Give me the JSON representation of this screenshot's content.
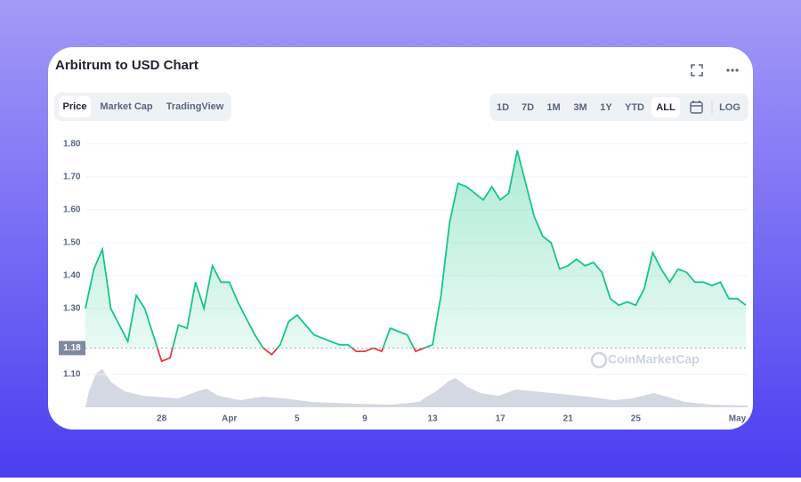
{
  "ui": {
    "tabs": [
      "Price",
      "Market Cap",
      "TradingView"
    ],
    "active_tab": 0,
    "ranges": [
      "1D",
      "7D",
      "1M",
      "3M",
      "1Y",
      "YTD",
      "ALL"
    ],
    "active_range": 6,
    "log_button": "LOG",
    "watermark": "CoinMarketCap"
  },
  "chart_data": {
    "type": "line",
    "title": "Arbitrum to USD Chart",
    "categories": [
      null,
      null,
      null,
      null,
      null,
      null,
      null,
      null,
      null,
      "28",
      null,
      null,
      null,
      null,
      null,
      null,
      null,
      "Apr",
      null,
      null,
      null,
      null,
      null,
      null,
      null,
      "5",
      null,
      null,
      null,
      null,
      null,
      null,
      null,
      "9",
      null,
      null,
      null,
      null,
      null,
      null,
      null,
      "13",
      null,
      null,
      null,
      null,
      null,
      null,
      null,
      "17",
      null,
      null,
      null,
      null,
      null,
      null,
      null,
      "21",
      null,
      null,
      null,
      null,
      null,
      null,
      null,
      "25",
      null,
      null,
      null,
      null,
      null,
      null,
      null,
      null,
      null,
      null,
      null,
      "May",
      null
    ],
    "series": [
      {
        "color": "#16c784",
        "below_color": "#ea3943",
        "values": [
          1.3,
          1.42,
          1.48,
          1.3,
          1.25,
          1.2,
          1.34,
          1.3,
          1.22,
          1.14,
          1.15,
          1.25,
          1.24,
          1.38,
          1.3,
          1.43,
          1.38,
          1.38,
          1.32,
          1.27,
          1.22,
          1.18,
          1.16,
          1.19,
          1.26,
          1.28,
          1.25,
          1.22,
          1.21,
          1.2,
          1.19,
          1.19,
          1.17,
          1.17,
          1.18,
          1.17,
          1.24,
          1.23,
          1.22,
          1.17,
          1.18,
          1.19,
          1.34,
          1.56,
          1.68,
          1.67,
          1.65,
          1.63,
          1.67,
          1.63,
          1.65,
          1.78,
          1.68,
          1.58,
          1.52,
          1.5,
          1.42,
          1.43,
          1.45,
          1.43,
          1.44,
          1.41,
          1.33,
          1.31,
          1.32,
          1.31,
          1.36,
          1.47,
          1.42,
          1.38,
          1.42,
          1.41,
          1.38,
          1.38,
          1.37,
          1.38,
          1.33,
          1.33,
          1.31
        ]
      }
    ],
    "baseline": 1.18,
    "ylim": [
      1.0,
      1.84
    ],
    "yticks": [
      {
        "value": 1.1,
        "label": "1.10"
      },
      {
        "value": 1.3,
        "label": "1.30"
      },
      {
        "value": 1.4,
        "label": "1.40"
      },
      {
        "value": 1.5,
        "label": "1.50"
      },
      {
        "value": 1.6,
        "label": "1.60"
      },
      {
        "value": 1.7,
        "label": "1.70"
      },
      {
        "value": 1.8,
        "label": "1.80"
      }
    ],
    "grid": true
  }
}
